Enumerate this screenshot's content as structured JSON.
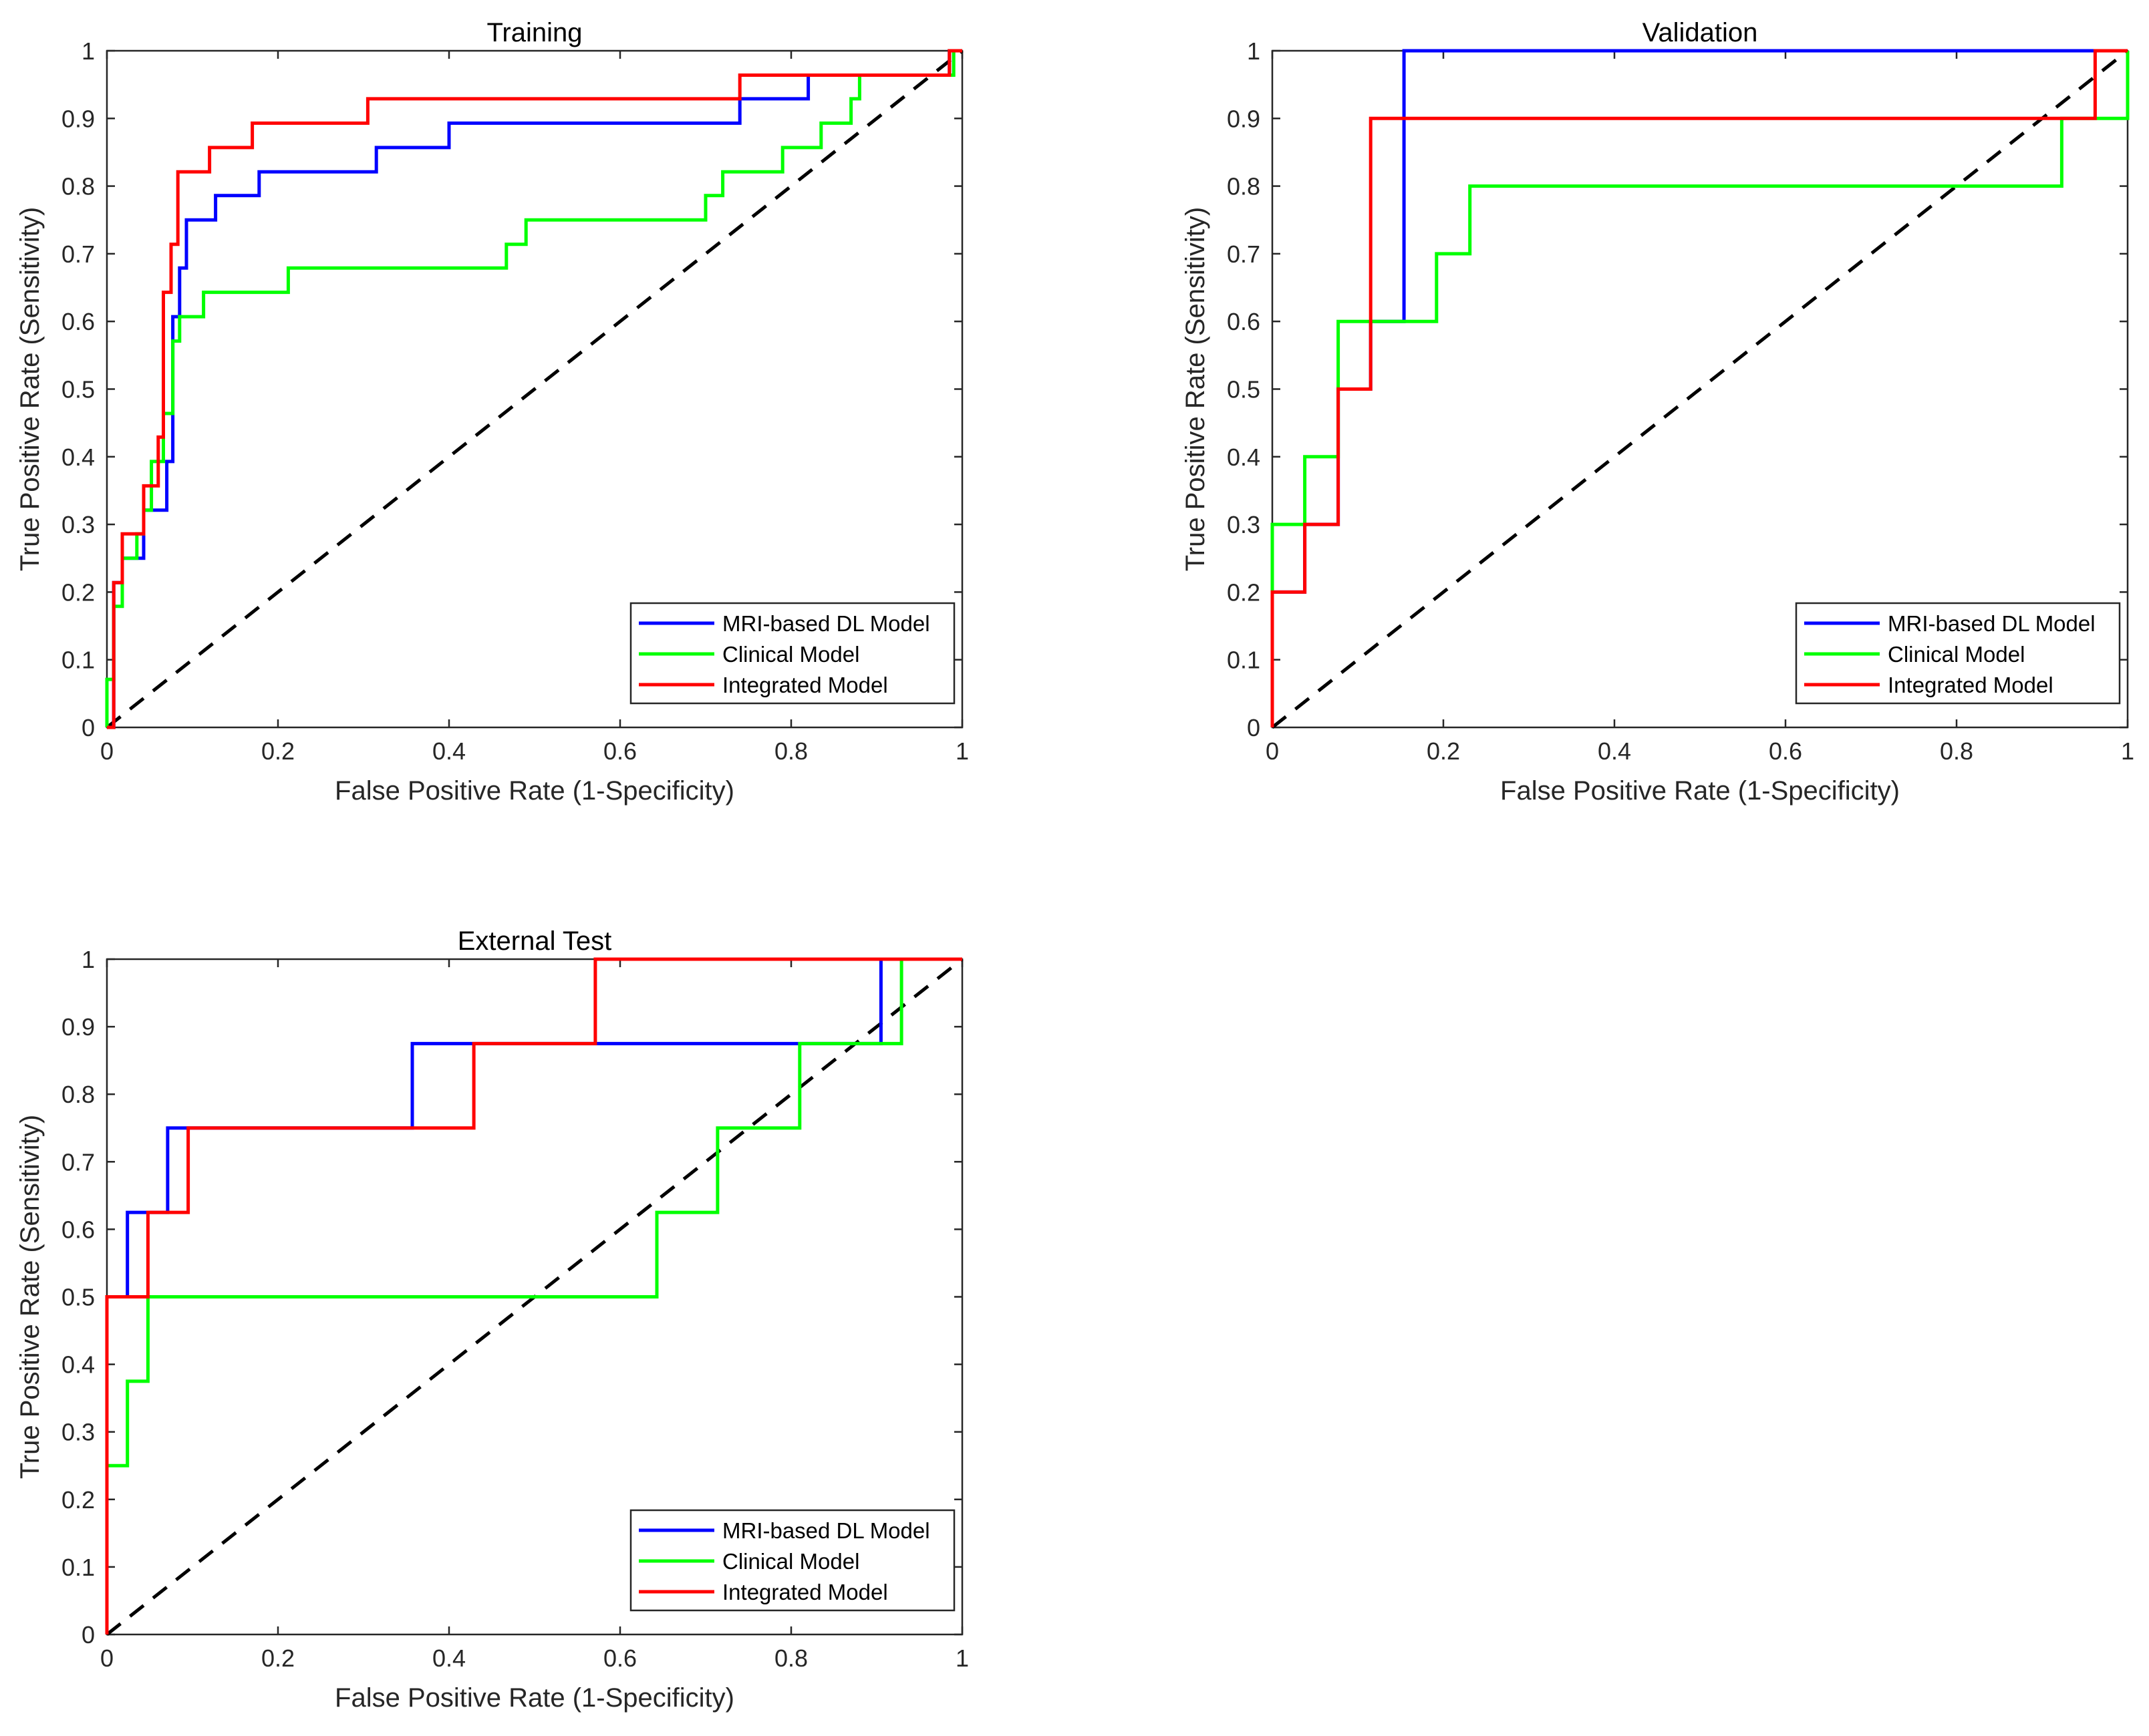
{
  "chart_data": [
    {
      "type": "line",
      "title": "Training",
      "xlabel": "False Positive Rate (1-Specificity)",
      "ylabel": "True Positive Rate (Sensitivity)",
      "xlim": [
        0,
        1
      ],
      "ylim": [
        0,
        1
      ],
      "xticks": [
        "0",
        "0.2",
        "0.4",
        "0.6",
        "0.8",
        "1"
      ],
      "yticks": [
        "0",
        "0.1",
        "0.2",
        "0.3",
        "0.4",
        "0.5",
        "0.6",
        "0.7",
        "0.8",
        "0.9",
        "1"
      ],
      "legend_position": "bottom-right",
      "diagonal": true,
      "series": [
        {
          "name": "MRI-based DL Model",
          "color": "#0000ff",
          "points": [
            [
              0,
              0
            ],
            [
              0.008,
              0
            ],
            [
              0.008,
              0.214
            ],
            [
              0.018,
              0.214
            ],
            [
              0.018,
              0.25
            ],
            [
              0.043,
              0.25
            ],
            [
              0.043,
              0.321
            ],
            [
              0.07,
              0.321
            ],
            [
              0.07,
              0.393
            ],
            [
              0.077,
              0.393
            ],
            [
              0.077,
              0.607
            ],
            [
              0.085,
              0.607
            ],
            [
              0.085,
              0.679
            ],
            [
              0.093,
              0.679
            ],
            [
              0.093,
              0.75
            ],
            [
              0.127,
              0.75
            ],
            [
              0.127,
              0.786
            ],
            [
              0.178,
              0.786
            ],
            [
              0.178,
              0.821
            ],
            [
              0.315,
              0.821
            ],
            [
              0.315,
              0.857
            ],
            [
              0.4,
              0.857
            ],
            [
              0.4,
              0.893
            ],
            [
              0.74,
              0.893
            ],
            [
              0.74,
              0.929
            ],
            [
              0.82,
              0.929
            ],
            [
              0.82,
              0.964
            ],
            [
              0.985,
              0.964
            ],
            [
              0.985,
              1
            ],
            [
              1,
              1
            ]
          ]
        },
        {
          "name": "Clinical Model",
          "color": "#00ff00",
          "points": [
            [
              0,
              0
            ],
            [
              0,
              0.071
            ],
            [
              0.008,
              0.071
            ],
            [
              0.008,
              0.179
            ],
            [
              0.018,
              0.179
            ],
            [
              0.018,
              0.25
            ],
            [
              0.035,
              0.25
            ],
            [
              0.035,
              0.286
            ],
            [
              0.043,
              0.286
            ],
            [
              0.043,
              0.321
            ],
            [
              0.052,
              0.321
            ],
            [
              0.052,
              0.393
            ],
            [
              0.066,
              0.393
            ],
            [
              0.066,
              0.464
            ],
            [
              0.077,
              0.464
            ],
            [
              0.077,
              0.571
            ],
            [
              0.085,
              0.571
            ],
            [
              0.085,
              0.607
            ],
            [
              0.113,
              0.607
            ],
            [
              0.113,
              0.643
            ],
            [
              0.212,
              0.643
            ],
            [
              0.212,
              0.679
            ],
            [
              0.467,
              0.679
            ],
            [
              0.467,
              0.714
            ],
            [
              0.49,
              0.714
            ],
            [
              0.49,
              0.75
            ],
            [
              0.7,
              0.75
            ],
            [
              0.7,
              0.786
            ],
            [
              0.72,
              0.786
            ],
            [
              0.72,
              0.821
            ],
            [
              0.79,
              0.821
            ],
            [
              0.79,
              0.857
            ],
            [
              0.835,
              0.857
            ],
            [
              0.835,
              0.893
            ],
            [
              0.87,
              0.893
            ],
            [
              0.87,
              0.929
            ],
            [
              0.88,
              0.929
            ],
            [
              0.88,
              0.964
            ],
            [
              0.99,
              0.964
            ],
            [
              0.99,
              1
            ],
            [
              1,
              1
            ]
          ]
        },
        {
          "name": "Integrated Model",
          "color": "#ff0000",
          "points": [
            [
              0,
              0
            ],
            [
              0.008,
              0
            ],
            [
              0.008,
              0.214
            ],
            [
              0.018,
              0.214
            ],
            [
              0.018,
              0.286
            ],
            [
              0.043,
              0.286
            ],
            [
              0.043,
              0.357
            ],
            [
              0.06,
              0.357
            ],
            [
              0.06,
              0.429
            ],
            [
              0.066,
              0.429
            ],
            [
              0.066,
              0.643
            ],
            [
              0.075,
              0.643
            ],
            [
              0.075,
              0.714
            ],
            [
              0.083,
              0.714
            ],
            [
              0.083,
              0.821
            ],
            [
              0.12,
              0.821
            ],
            [
              0.12,
              0.857
            ],
            [
              0.17,
              0.857
            ],
            [
              0.17,
              0.893
            ],
            [
              0.305,
              0.893
            ],
            [
              0.305,
              0.929
            ],
            [
              0.74,
              0.929
            ],
            [
              0.74,
              0.964
            ],
            [
              0.985,
              0.964
            ],
            [
              0.985,
              1
            ],
            [
              1,
              1
            ]
          ]
        }
      ]
    },
    {
      "type": "line",
      "title": "Validation",
      "xlabel": "False Positive Rate (1-Specificity)",
      "ylabel": "True Positive Rate (Sensitivity)",
      "xlim": [
        0,
        1
      ],
      "ylim": [
        0,
        1
      ],
      "xticks": [
        "0",
        "0.2",
        "0.4",
        "0.6",
        "0.8",
        "1"
      ],
      "yticks": [
        "0",
        "0.1",
        "0.2",
        "0.3",
        "0.4",
        "0.5",
        "0.6",
        "0.7",
        "0.8",
        "0.9",
        "1"
      ],
      "legend_position": "bottom-right",
      "diagonal": true,
      "series": [
        {
          "name": "MRI-based DL Model",
          "color": "#0000ff",
          "points": [
            [
              0,
              0
            ],
            [
              0,
              0.2
            ],
            [
              0.038,
              0.2
            ],
            [
              0.038,
              0.3
            ],
            [
              0.077,
              0.3
            ],
            [
              0.077,
              0.5
            ],
            [
              0.115,
              0.5
            ],
            [
              0.115,
              0.6
            ],
            [
              0.154,
              0.6
            ],
            [
              0.154,
              1
            ],
            [
              1,
              1
            ]
          ]
        },
        {
          "name": "Clinical Model",
          "color": "#00ff00",
          "points": [
            [
              0,
              0
            ],
            [
              0,
              0.3
            ],
            [
              0.038,
              0.3
            ],
            [
              0.038,
              0.4
            ],
            [
              0.077,
              0.4
            ],
            [
              0.077,
              0.6
            ],
            [
              0.192,
              0.6
            ],
            [
              0.192,
              0.7
            ],
            [
              0.231,
              0.7
            ],
            [
              0.231,
              0.8
            ],
            [
              0.923,
              0.8
            ],
            [
              0.923,
              0.9
            ],
            [
              1,
              0.9
            ],
            [
              1,
              1
            ]
          ]
        },
        {
          "name": "Integrated Model",
          "color": "#ff0000",
          "points": [
            [
              0,
              0
            ],
            [
              0,
              0.2
            ],
            [
              0.038,
              0.2
            ],
            [
              0.038,
              0.3
            ],
            [
              0.077,
              0.3
            ],
            [
              0.077,
              0.5
            ],
            [
              0.115,
              0.5
            ],
            [
              0.115,
              0.9
            ],
            [
              0.962,
              0.9
            ],
            [
              0.962,
              1
            ],
            [
              1,
              1
            ]
          ]
        }
      ]
    },
    {
      "type": "line",
      "title": "External Test",
      "xlabel": "False Positive Rate (1-Specificity)",
      "ylabel": "True Positive Rate (Sensitivity)",
      "xlim": [
        0,
        1
      ],
      "ylim": [
        0,
        1
      ],
      "xticks": [
        "0",
        "0.2",
        "0.4",
        "0.6",
        "0.8",
        "1"
      ],
      "yticks": [
        "0",
        "0.1",
        "0.2",
        "0.3",
        "0.4",
        "0.5",
        "0.6",
        "0.7",
        "0.8",
        "0.9",
        "1"
      ],
      "legend_position": "bottom-right",
      "diagonal": true,
      "series": [
        {
          "name": "MRI-based DL Model",
          "color": "#0000ff",
          "points": [
            [
              0,
              0
            ],
            [
              0,
              0.5
            ],
            [
              0.024,
              0.5
            ],
            [
              0.024,
              0.625
            ],
            [
              0.071,
              0.625
            ],
            [
              0.071,
              0.75
            ],
            [
              0.357,
              0.75
            ],
            [
              0.357,
              0.875
            ],
            [
              0.905,
              0.875
            ],
            [
              0.905,
              1
            ],
            [
              1,
              1
            ]
          ]
        },
        {
          "name": "Clinical Model",
          "color": "#00ff00",
          "points": [
            [
              0,
              0
            ],
            [
              0,
              0.25
            ],
            [
              0.024,
              0.25
            ],
            [
              0.024,
              0.375
            ],
            [
              0.048,
              0.375
            ],
            [
              0.048,
              0.5
            ],
            [
              0.643,
              0.5
            ],
            [
              0.643,
              0.625
            ],
            [
              0.714,
              0.625
            ],
            [
              0.714,
              0.75
            ],
            [
              0.81,
              0.75
            ],
            [
              0.81,
              0.875
            ],
            [
              0.929,
              0.875
            ],
            [
              0.929,
              1
            ],
            [
              1,
              1
            ]
          ]
        },
        {
          "name": "Integrated Model",
          "color": "#ff0000",
          "points": [
            [
              0,
              0
            ],
            [
              0,
              0.5
            ],
            [
              0.048,
              0.5
            ],
            [
              0.048,
              0.625
            ],
            [
              0.095,
              0.625
            ],
            [
              0.095,
              0.75
            ],
            [
              0.429,
              0.75
            ],
            [
              0.429,
              0.875
            ],
            [
              0.571,
              0.875
            ],
            [
              0.571,
              1
            ],
            [
              1,
              1
            ]
          ]
        }
      ]
    }
  ]
}
